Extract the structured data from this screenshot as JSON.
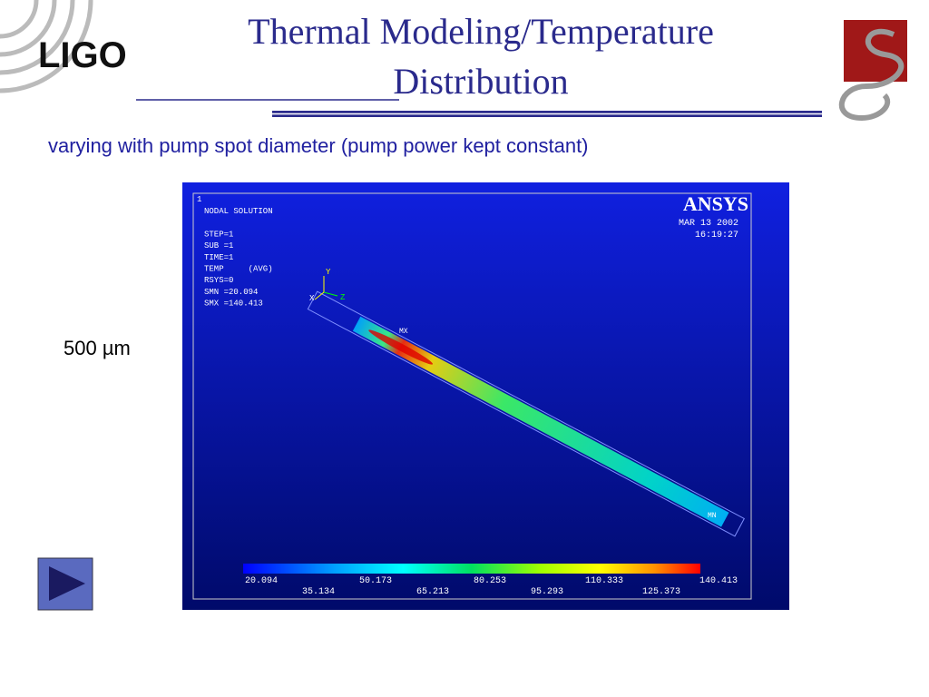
{
  "header": {
    "logo": "LIGO",
    "title_lines": [
      "Thermal Modeling/Temperature",
      "Distribution"
    ]
  },
  "subtitle": "varying with pump spot diameter (pump power kept constant)",
  "side_label": "500 µm",
  "figure": {
    "window_number": "1",
    "info_lines": [
      "NODAL SOLUTION",
      "",
      "STEP=1",
      "SUB =1",
      "TIME=1",
      "TEMP     (AVG)",
      "RSYS=0",
      "SMN =20.094",
      "SMX =140.413"
    ],
    "brand": "ANSYS",
    "date": "MAR 13 2002",
    "time": "16:19:27",
    "axes": [
      "Y",
      "X",
      "Z"
    ],
    "max_marker": "MX",
    "min_marker": "MN",
    "colorbar_labels": [
      "20.094",
      "35.134",
      "50.173",
      "65.213",
      "80.253",
      "95.293",
      "110.333",
      "125.373",
      "140.413"
    ]
  }
}
